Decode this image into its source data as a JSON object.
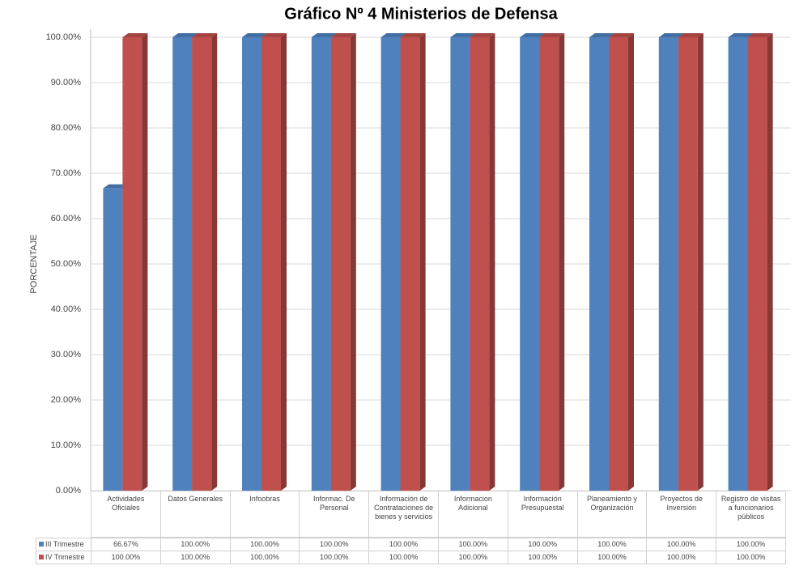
{
  "chart_data": {
    "type": "bar",
    "title": "Gráfico Nº 4 Ministerios de Defensa",
    "y_label": "PORCENTAJE",
    "categories": [
      "Actividades Oficiales",
      "Datos Generales",
      "Infoobras",
      "Informac. De Personal",
      "Información  de Contrataciones de bienes y servicios",
      "Informacion Adicional",
      "Información Presupuestal",
      "Planeamiento y Organización",
      "Proyectos de Inversión",
      "Registro de visitas a funcionarios públicos"
    ],
    "series": [
      {
        "name": "III Trimestre",
        "color": "#4f81bd",
        "values": [
          66.67,
          100,
          100,
          100,
          100,
          100,
          100,
          100,
          100,
          100
        ],
        "value_labels": [
          "66.67%",
          "100.00%",
          "100.00%",
          "100.00%",
          "100.00%",
          "100.00%",
          "100.00%",
          "100.00%",
          "100.00%",
          "100.00%"
        ]
      },
      {
        "name": "IV Trimestre",
        "color": "#c0504d",
        "values": [
          100,
          100,
          100,
          100,
          100,
          100,
          100,
          100,
          100,
          100
        ],
        "value_labels": [
          "100.00%",
          "100.00%",
          "100.00%",
          "100.00%",
          "100.00%",
          "100.00%",
          "100.00%",
          "100.00%",
          "100.00%",
          "100.00%"
        ]
      }
    ],
    "ylim": [
      0,
      100
    ],
    "yticks": [
      {
        "value": 0,
        "label": "0.00%"
      },
      {
        "value": 10,
        "label": "10.00%"
      },
      {
        "value": 20,
        "label": "20.00%"
      },
      {
        "value": 30,
        "label": "30.00%"
      },
      {
        "value": 40,
        "label": "40.00%"
      },
      {
        "value": 50,
        "label": "50.00%"
      },
      {
        "value": 60,
        "label": "60.00%"
      },
      {
        "value": 70,
        "label": "70.00%"
      },
      {
        "value": 80,
        "label": "80.00%"
      },
      {
        "value": 90,
        "label": "90.00%"
      },
      {
        "value": 100,
        "label": "100.00%"
      }
    ],
    "grid": true
  }
}
